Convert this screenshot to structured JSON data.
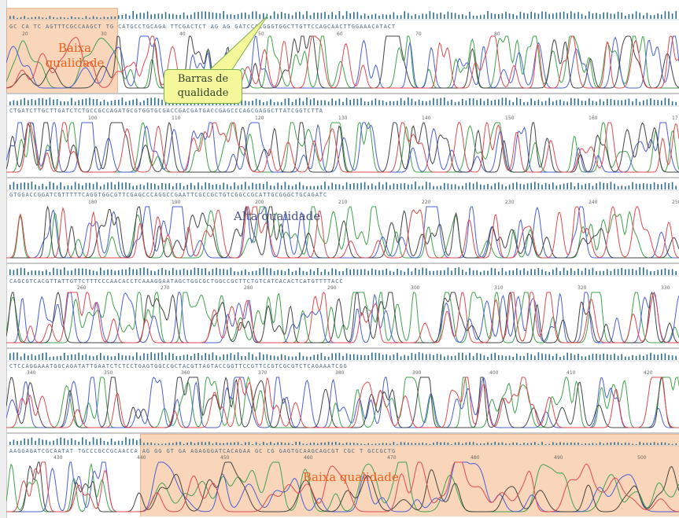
{
  "labels": {
    "low_quality_start_line1": "Baixa",
    "low_quality_start_line2": "qualidade",
    "quality_bars_line1": "Barras de",
    "quality_bars_line2": "qualidade",
    "high_quality": "Alta qualidade",
    "low_quality_end": "Baixa qualidade"
  },
  "rows": [
    {
      "sequence": "GC CA  TC AGTTTCGCCAAGCT TG CATGCCTGCAGA TTCGACTCT AG AG GATCCCCGGGTGGCTTGTTCCAGCAACTTGGAAACATACT",
      "positions": [
        "20",
        "30",
        "40",
        "50",
        "60",
        "70",
        "80"
      ]
    },
    {
      "sequence": "CTGATCTTGCTTGATCTCTGCCGCCAGATGCGTGGTGCGACCGACGATGACCGAGCCCAGCGAGGCTTATCGGTCTTA",
      "positions": [
        "100",
        "110",
        "120",
        "130",
        "140",
        "150",
        "160",
        "17"
      ]
    },
    {
      "sequence": "GTGGACCGGATCGTTTTTCAGGTGGCGTTCGAGCCCAGGCCGAATTCGCCGCTGTCGGCCGCATTGCGGGCTGCAGATC",
      "positions": [
        "180",
        "190",
        "200",
        "210",
        "220",
        "230",
        "240",
        "250"
      ]
    },
    {
      "sequence": "CAGCGTCACGTTATTGTTCTTTCCCAACACCTCAAAGGAATAGCTGGCGCTGGCCGCTTCTGTCATCACACTCATGTTTTACC",
      "positions": [
        "260",
        "270",
        "280",
        "290",
        "300",
        "310",
        "320",
        "330"
      ]
    },
    {
      "sequence": "CTCCAGGAAATGGCAGATATTGAATCTCTCCTGAGTGGCCGCTACGTTAGTACCGGTTCCGTTCCGTCGCGTCTCAGAAATCGG",
      "positions": [
        "340",
        "350",
        "360",
        "370",
        "380",
        "390",
        "400",
        "410",
        "420"
      ]
    },
    {
      "sequence": "AAGGAGATCGCAATAT TGCCCGCCGCAACCA AG GG GT GA AGAGGGATCACAGAA  GC CG GAGTGCAAGCAGCGT CGC T GCCGCTG",
      "positions": [
        "430",
        "440",
        "450",
        "460",
        "470",
        "480",
        "490",
        "500"
      ]
    }
  ],
  "trace_colors": {
    "A": "#3fa34d",
    "C": "#4b5fd6",
    "G": "#444444",
    "T": "#e0494f"
  },
  "colors": {
    "low_quality_fill": "#f7c9a3",
    "label_orange": "#e9601e",
    "label_blue": "#4c5286",
    "callout_fill": "#f4f89a",
    "quality_bar": "#2e6e8e",
    "sequence_text": "#4d6a85"
  }
}
